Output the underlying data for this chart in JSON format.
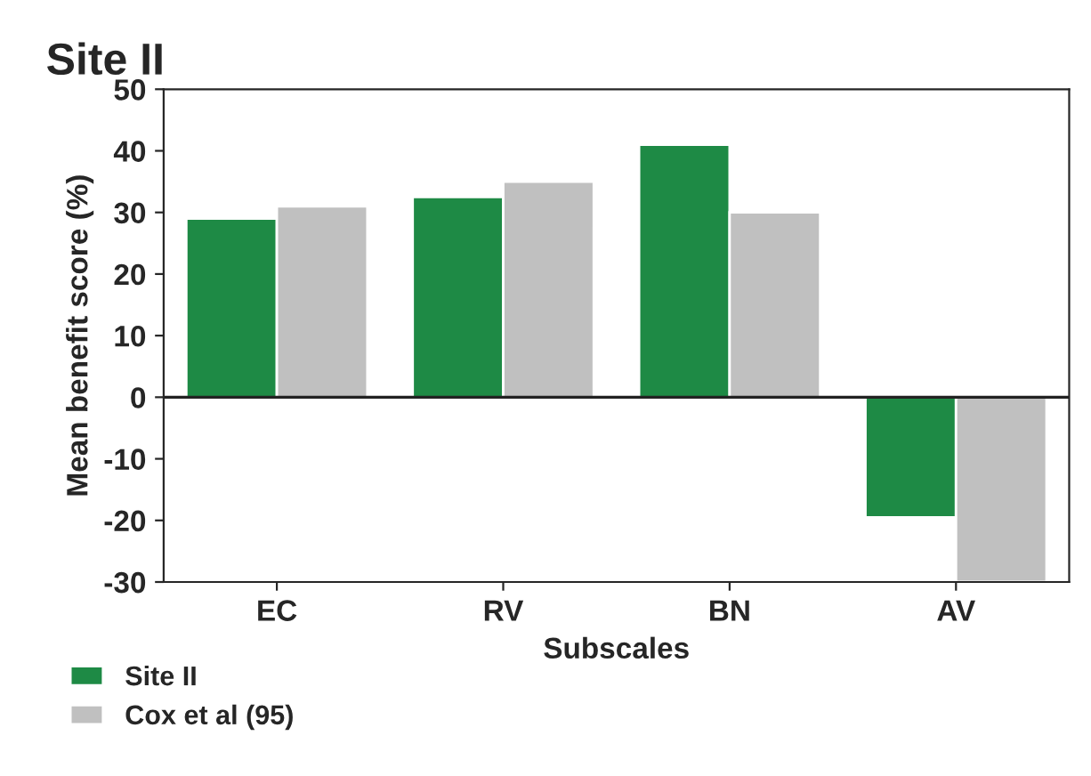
{
  "chart_data": {
    "type": "bar",
    "title": "Site II",
    "xlabel": "Subscales",
    "ylabel": "Mean benefit score (%)",
    "categories": [
      "EC",
      "RV",
      "BN",
      "AV"
    ],
    "series": [
      {
        "name": "Site II",
        "color": "#1e8a45",
        "values": [
          29,
          32.5,
          41,
          -19.5
        ]
      },
      {
        "name": "Cox et al (95)",
        "color": "#c0c0c0",
        "values": [
          31,
          35,
          30,
          -30
        ]
      }
    ],
    "ylim": [
      -30,
      50
    ],
    "yticks": [
      -30,
      -20,
      -10,
      0,
      10,
      20,
      30,
      40,
      50
    ],
    "ref_lines": [
      {
        "axis": "y",
        "value": 0,
        "color": "#222222"
      }
    ],
    "legend": "bottom left",
    "grid": false
  }
}
